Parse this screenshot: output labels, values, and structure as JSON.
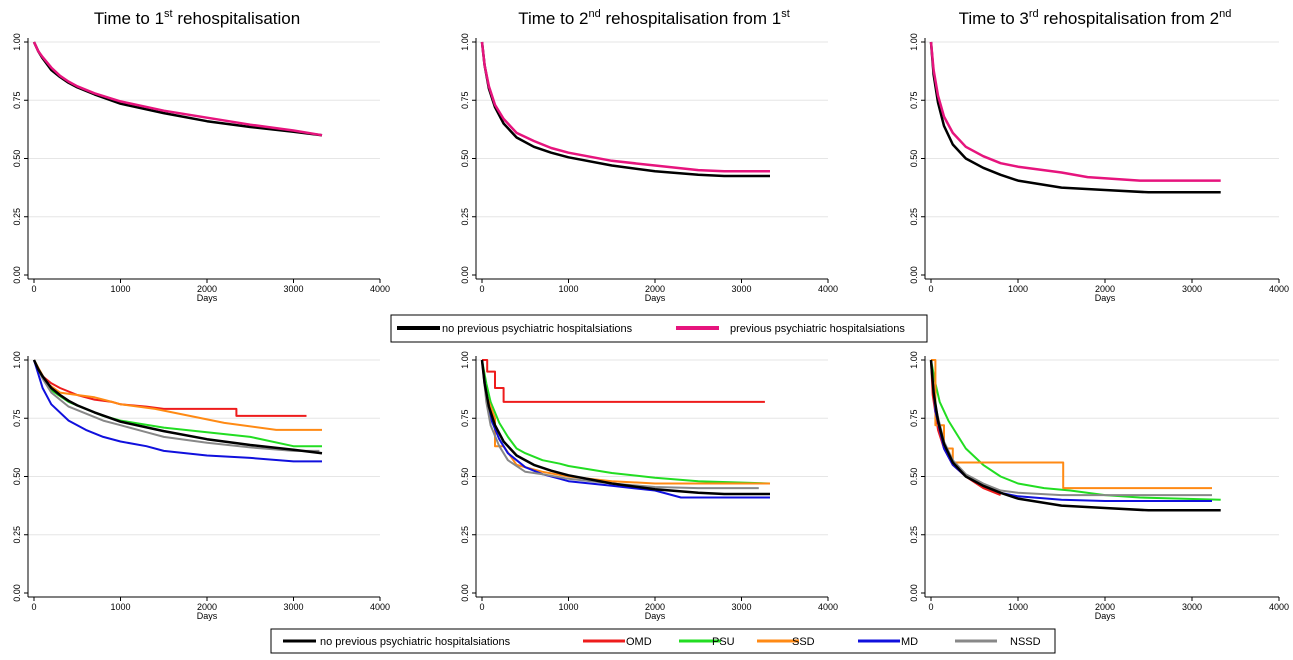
{
  "legend_top": [
    {
      "label": "no previous psychiatric hospitalsiations",
      "color": "#000000"
    },
    {
      "label": "previous psychiatric hospitalsiations",
      "color": "#e6147d"
    }
  ],
  "legend_bottom": [
    {
      "label": "no previous psychiatric hospitalsiations",
      "color": "#000000"
    },
    {
      "label": "OMD",
      "color": "#ee1c1c"
    },
    {
      "label": "PSU",
      "color": "#22dd22"
    },
    {
      "label": "SSD",
      "color": "#ff8a14"
    },
    {
      "label": "MD",
      "color": "#1010dd"
    },
    {
      "label": "NSSD",
      "color": "#888888"
    }
  ],
  "chart_data": [
    {
      "type": "line",
      "title": {
        "pre": "Time to 1",
        "sup": "st",
        "post": " rehospitalisation"
      },
      "xlabel": "Days",
      "xlim": [
        0,
        4000
      ],
      "ylim": [
        0,
        1
      ],
      "xticks": [
        0,
        1000,
        2000,
        3000,
        4000
      ],
      "yticks": [
        "0.00",
        "0.25",
        "0.50",
        "0.75",
        "1.00"
      ],
      "grid": true,
      "series": [
        {
          "color": "#000000",
          "width": 2.5,
          "x": [
            0,
            50,
            100,
            200,
            300,
            400,
            500,
            700,
            1000,
            1500,
            2000,
            2500,
            3000,
            3330
          ],
          "y": [
            1.0,
            0.96,
            0.93,
            0.88,
            0.85,
            0.825,
            0.805,
            0.775,
            0.735,
            0.695,
            0.66,
            0.635,
            0.615,
            0.6
          ]
        },
        {
          "color": "#e6147d",
          "width": 2.5,
          "x": [
            0,
            50,
            100,
            200,
            300,
            400,
            500,
            700,
            1000,
            1500,
            2000,
            2500,
            3000,
            3330
          ],
          "y": [
            1.0,
            0.96,
            0.935,
            0.89,
            0.855,
            0.83,
            0.81,
            0.78,
            0.745,
            0.705,
            0.675,
            0.645,
            0.62,
            0.6
          ]
        }
      ]
    },
    {
      "type": "line",
      "title": {
        "pre": "Time to 2",
        "sup": "nd",
        "post": " rehospitalisation from 1",
        "sup2": "st"
      },
      "xlabel": "Days",
      "xlim": [
        0,
        4000
      ],
      "ylim": [
        0,
        1
      ],
      "xticks": [
        0,
        1000,
        2000,
        3000,
        4000
      ],
      "yticks": [
        "0.00",
        "0.25",
        "0.50",
        "0.75",
        "1.00"
      ],
      "grid": true,
      "series": [
        {
          "color": "#000000",
          "width": 2.5,
          "x": [
            0,
            30,
            80,
            150,
            250,
            400,
            600,
            800,
            1000,
            1500,
            2000,
            2500,
            2800,
            3330
          ],
          "y": [
            1.0,
            0.9,
            0.8,
            0.72,
            0.65,
            0.59,
            0.55,
            0.525,
            0.505,
            0.47,
            0.445,
            0.43,
            0.425,
            0.425
          ]
        },
        {
          "color": "#e6147d",
          "width": 2.5,
          "x": [
            0,
            30,
            80,
            150,
            250,
            400,
            600,
            800,
            1000,
            1500,
            2000,
            2500,
            2800,
            3330
          ],
          "y": [
            1.0,
            0.9,
            0.81,
            0.73,
            0.67,
            0.61,
            0.575,
            0.545,
            0.525,
            0.49,
            0.47,
            0.45,
            0.445,
            0.445
          ]
        }
      ]
    },
    {
      "type": "line",
      "title": {
        "pre": "Time to 3",
        "sup": "rd",
        "post": " rehospitalisation from 2",
        "sup2": "nd"
      },
      "xlabel": "Days",
      "xlim": [
        0,
        4000
      ],
      "ylim": [
        0,
        1
      ],
      "xticks": [
        0,
        1000,
        2000,
        3000,
        4000
      ],
      "yticks": [
        "0.00",
        "0.25",
        "0.50",
        "0.75",
        "1.00"
      ],
      "grid": true,
      "series": [
        {
          "color": "#000000",
          "width": 2.5,
          "x": [
            0,
            30,
            80,
            150,
            250,
            400,
            600,
            800,
            1000,
            1500,
            2000,
            2500,
            3000,
            3330
          ],
          "y": [
            1.0,
            0.86,
            0.74,
            0.64,
            0.56,
            0.5,
            0.46,
            0.43,
            0.405,
            0.375,
            0.365,
            0.355,
            0.355,
            0.355
          ]
        },
        {
          "color": "#e6147d",
          "width": 2.5,
          "x": [
            0,
            30,
            80,
            150,
            250,
            400,
            600,
            800,
            1000,
            1500,
            1800,
            2400,
            3000,
            3330
          ],
          "y": [
            1.0,
            0.88,
            0.77,
            0.68,
            0.61,
            0.55,
            0.51,
            0.48,
            0.465,
            0.44,
            0.42,
            0.405,
            0.405,
            0.405
          ]
        }
      ]
    },
    {
      "type": "line",
      "xlabel": "Days",
      "xlim": [
        0,
        4000
      ],
      "ylim": [
        0,
        1
      ],
      "xticks": [
        0,
        1000,
        2000,
        3000,
        4000
      ],
      "yticks": [
        "0.00",
        "0.25",
        "0.50",
        "0.75",
        "1.00"
      ],
      "grid": true,
      "series": [
        {
          "name": "OMD",
          "color": "#ee1c1c",
          "width": 2,
          "x": [
            0,
            100,
            200,
            300,
            500,
            700,
            900,
            1000,
            1300,
            1500,
            2000,
            2340,
            2340,
            3150
          ],
          "y": [
            1.0,
            0.93,
            0.9,
            0.88,
            0.85,
            0.83,
            0.82,
            0.81,
            0.8,
            0.79,
            0.79,
            0.79,
            0.76,
            0.76
          ]
        },
        {
          "name": "PSU",
          "color": "#22dd22",
          "width": 2,
          "x": [
            0,
            100,
            200,
            400,
            600,
            800,
            1000,
            1500,
            2000,
            2500,
            3000,
            3330
          ],
          "y": [
            1.0,
            0.93,
            0.87,
            0.82,
            0.79,
            0.76,
            0.74,
            0.71,
            0.69,
            0.67,
            0.63,
            0.63
          ]
        },
        {
          "name": "SSD",
          "color": "#ff8a14",
          "width": 2,
          "x": [
            0,
            150,
            300,
            500,
            700,
            900,
            1000,
            1400,
            1800,
            2200,
            2800,
            3330
          ],
          "y": [
            1.0,
            0.9,
            0.86,
            0.85,
            0.84,
            0.82,
            0.81,
            0.79,
            0.76,
            0.73,
            0.7,
            0.7
          ]
        },
        {
          "name": "MD",
          "color": "#1010dd",
          "width": 2,
          "x": [
            0,
            100,
            200,
            400,
            600,
            800,
            1000,
            1300,
            1500,
            2000,
            2500,
            3000,
            3330
          ],
          "y": [
            1.0,
            0.88,
            0.81,
            0.74,
            0.7,
            0.67,
            0.65,
            0.63,
            0.61,
            0.59,
            0.58,
            0.565,
            0.565
          ]
        },
        {
          "name": "NSSD",
          "color": "#888888",
          "width": 2,
          "x": [
            0,
            100,
            200,
            400,
            600,
            800,
            1000,
            1300,
            1500,
            2000,
            2500,
            3000,
            3300
          ],
          "y": [
            1.0,
            0.92,
            0.86,
            0.8,
            0.77,
            0.74,
            0.72,
            0.69,
            0.67,
            0.645,
            0.625,
            0.61,
            0.61
          ]
        },
        {
          "color": "#000000",
          "width": 2.5,
          "x": [
            0,
            50,
            100,
            200,
            300,
            400,
            500,
            700,
            1000,
            1500,
            2000,
            2500,
            3000,
            3330
          ],
          "y": [
            1.0,
            0.96,
            0.93,
            0.88,
            0.85,
            0.825,
            0.805,
            0.775,
            0.735,
            0.695,
            0.66,
            0.635,
            0.615,
            0.6
          ]
        }
      ]
    },
    {
      "type": "line",
      "xlabel": "Days",
      "xlim": [
        0,
        4000
      ],
      "ylim": [
        0,
        1
      ],
      "xticks": [
        0,
        1000,
        2000,
        3000,
        4000
      ],
      "yticks": [
        "0.00",
        "0.25",
        "0.50",
        "0.75",
        "1.00"
      ],
      "grid": true,
      "series": [
        {
          "name": "OMD",
          "color": "#ee1c1c",
          "width": 2,
          "x": [
            0,
            60,
            60,
            150,
            150,
            250,
            250,
            3270
          ],
          "y": [
            1.0,
            1.0,
            0.95,
            0.95,
            0.88,
            0.88,
            0.82,
            0.82
          ]
        },
        {
          "name": "PSU",
          "color": "#22dd22",
          "width": 2,
          "x": [
            0,
            50,
            100,
            200,
            300,
            400,
            500,
            700,
            900,
            1000,
            1500,
            2000,
            2500,
            3330
          ],
          "y": [
            1.0,
            0.9,
            0.82,
            0.73,
            0.67,
            0.62,
            0.6,
            0.57,
            0.555,
            0.545,
            0.515,
            0.495,
            0.48,
            0.47
          ]
        },
        {
          "name": "SSD",
          "color": "#ff8a14",
          "width": 2,
          "x": [
            0,
            50,
            150,
            150,
            250,
            400,
            400,
            700,
            1000,
            1500,
            2000,
            2500,
            2500,
            3330
          ],
          "y": [
            1.0,
            0.85,
            0.75,
            0.63,
            0.63,
            0.55,
            0.55,
            0.52,
            0.5,
            0.48,
            0.47,
            0.47,
            0.47,
            0.47
          ]
        },
        {
          "name": "MD",
          "color": "#1010dd",
          "width": 2,
          "x": [
            0,
            50,
            100,
            200,
            300,
            500,
            700,
            900,
            1000,
            1500,
            2000,
            2300,
            2300,
            3330
          ],
          "y": [
            1.0,
            0.85,
            0.75,
            0.66,
            0.6,
            0.54,
            0.51,
            0.49,
            0.48,
            0.46,
            0.44,
            0.41,
            0.41,
            0.41
          ]
        },
        {
          "name": "NSSD",
          "color": "#888888",
          "width": 2,
          "x": [
            0,
            50,
            100,
            200,
            300,
            500,
            700,
            1000,
            1500,
            2000,
            2500,
            3200
          ],
          "y": [
            1.0,
            0.82,
            0.72,
            0.63,
            0.57,
            0.52,
            0.51,
            0.49,
            0.47,
            0.455,
            0.45,
            0.45
          ]
        },
        {
          "color": "#000000",
          "width": 2.5,
          "x": [
            0,
            30,
            80,
            150,
            250,
            400,
            600,
            800,
            1000,
            1500,
            2000,
            2500,
            2800,
            3330
          ],
          "y": [
            1.0,
            0.9,
            0.8,
            0.72,
            0.65,
            0.59,
            0.55,
            0.525,
            0.505,
            0.47,
            0.445,
            0.43,
            0.425,
            0.425
          ]
        }
      ]
    },
    {
      "type": "line",
      "xlabel": "Days",
      "xlim": [
        0,
        4000
      ],
      "ylim": [
        0,
        1
      ],
      "xticks": [
        0,
        1000,
        2000,
        3000,
        4000
      ],
      "yticks": [
        "0.00",
        "0.25",
        "0.50",
        "0.75",
        "1.00"
      ],
      "grid": true,
      "series": [
        {
          "name": "OMD",
          "color": "#ee1c1c",
          "width": 2,
          "x": [
            0,
            20,
            80,
            150,
            250,
            400,
            600,
            800
          ],
          "y": [
            1.0,
            0.85,
            0.7,
            0.62,
            0.55,
            0.5,
            0.45,
            0.42
          ]
        },
        {
          "name": "PSU",
          "color": "#22dd22",
          "width": 2,
          "x": [
            0,
            50,
            100,
            200,
            300,
            400,
            600,
            800,
            1000,
            1300,
            1600,
            2000,
            2400,
            3330
          ],
          "y": [
            1.0,
            0.9,
            0.82,
            0.74,
            0.68,
            0.62,
            0.55,
            0.5,
            0.47,
            0.45,
            0.44,
            0.42,
            0.41,
            0.4
          ]
        },
        {
          "name": "SSD",
          "color": "#ff8a14",
          "width": 2,
          "x": [
            0,
            50,
            50,
            150,
            150,
            250,
            250,
            1520,
            1520,
            3230
          ],
          "y": [
            1.0,
            1.0,
            0.72,
            0.72,
            0.62,
            0.62,
            0.56,
            0.56,
            0.45,
            0.45
          ]
        },
        {
          "name": "MD",
          "color": "#1010dd",
          "width": 2,
          "x": [
            0,
            50,
            150,
            250,
            400,
            600,
            800,
            1000,
            1500,
            2000,
            2500,
            3230
          ],
          "y": [
            1.0,
            0.78,
            0.62,
            0.55,
            0.5,
            0.46,
            0.43,
            0.415,
            0.4,
            0.395,
            0.395,
            0.395
          ]
        },
        {
          "name": "NSSD",
          "color": "#888888",
          "width": 2,
          "x": [
            0,
            50,
            150,
            250,
            400,
            600,
            800,
            1000,
            1500,
            2000,
            2500,
            3230
          ],
          "y": [
            1.0,
            0.8,
            0.65,
            0.57,
            0.51,
            0.47,
            0.44,
            0.43,
            0.42,
            0.42,
            0.42,
            0.42
          ]
        },
        {
          "color": "#000000",
          "width": 2.5,
          "x": [
            0,
            30,
            80,
            150,
            250,
            400,
            600,
            800,
            1000,
            1500,
            2000,
            2500,
            3000,
            3330
          ],
          "y": [
            1.0,
            0.86,
            0.74,
            0.64,
            0.56,
            0.5,
            0.46,
            0.43,
            0.405,
            0.375,
            0.365,
            0.355,
            0.355,
            0.355
          ]
        }
      ]
    }
  ]
}
